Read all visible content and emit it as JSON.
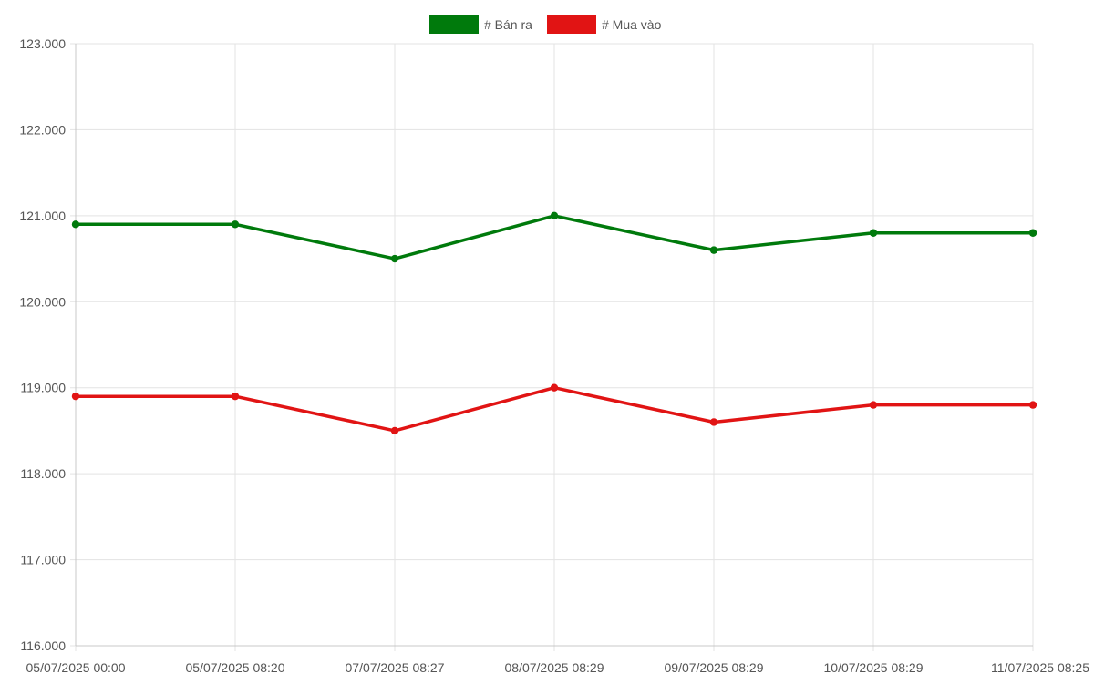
{
  "chart_data": {
    "type": "line",
    "title": "",
    "xlabel": "",
    "ylabel": "",
    "categories": [
      "05/07/2025 00:00",
      "05/07/2025 08:20",
      "07/07/2025 08:27",
      "08/07/2025 08:29",
      "09/07/2025 08:29",
      "10/07/2025 08:29",
      "11/07/2025 08:25"
    ],
    "series": [
      {
        "name": "# Bán ra",
        "color": "#007a0c",
        "values": [
          120900,
          120900,
          120500,
          121000,
          120600,
          120800,
          120800
        ]
      },
      {
        "name": "# Mua vào",
        "color": "#e11414",
        "values": [
          118900,
          118900,
          118500,
          119000,
          118600,
          118800,
          118800
        ]
      }
    ],
    "ylim": [
      116000,
      123000
    ],
    "yticks": [
      116000,
      117000,
      118000,
      119000,
      120000,
      121000,
      122000,
      123000
    ],
    "ytick_labels": [
      "116.000",
      "117.000",
      "118.000",
      "119.000",
      "120.000",
      "121.000",
      "122.000",
      "123.000"
    ],
    "grid": true,
    "legend_position": "top-center"
  }
}
